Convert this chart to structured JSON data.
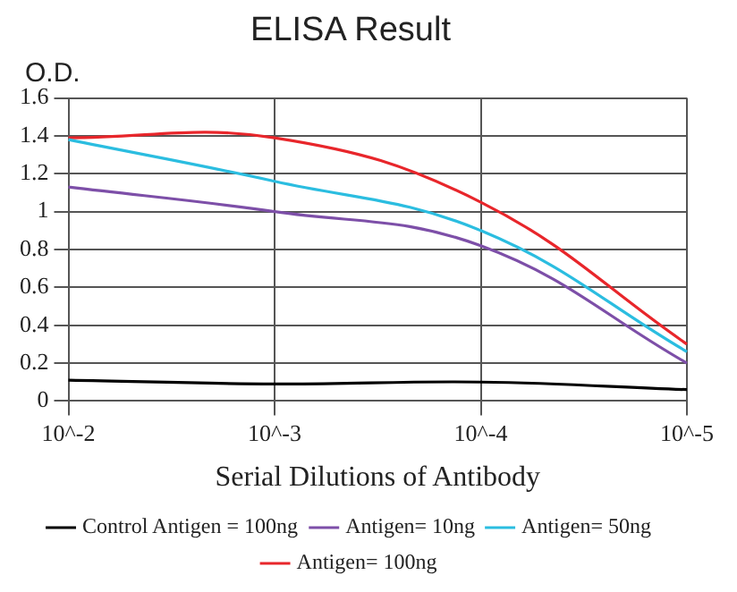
{
  "chart_data": {
    "type": "line",
    "title": "ELISA Result",
    "ylabel": "O.D.",
    "xlabel": "Serial Dilutions of Antibody",
    "categories": [
      "10^-2",
      "10^-3",
      "10^-4",
      "10^-5"
    ],
    "series": [
      {
        "name": "Control Antigen = 100ng",
        "color": "#000000",
        "values": [
          0.11,
          0.09,
          0.1,
          0.06
        ]
      },
      {
        "name": "Antigen= 10ng",
        "color": "#7d4fa8",
        "values": [
          1.13,
          1.0,
          0.82,
          0.2
        ]
      },
      {
        "name": "Antigen= 50ng",
        "color": "#2bbde0",
        "values": [
          1.38,
          1.16,
          0.9,
          0.26
        ]
      },
      {
        "name": "Antigen= 100ng",
        "color": "#e8262b",
        "values": [
          1.39,
          1.39,
          1.05,
          0.3
        ]
      }
    ],
    "ylim": [
      0,
      1.6
    ],
    "yticks": [
      0,
      0.2,
      0.4,
      0.6,
      0.8,
      1,
      1.2,
      1.4,
      1.6
    ],
    "grid": true,
    "legend": "bottom",
    "marker": "none",
    "line_style": "solid"
  }
}
